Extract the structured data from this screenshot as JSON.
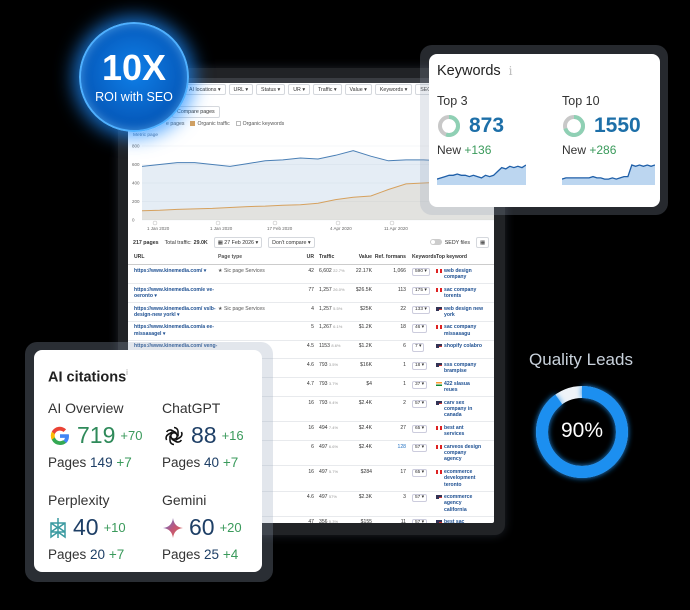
{
  "badge": {
    "value": "10X",
    "label": "ROI with SEO"
  },
  "filters": [
    "AI locations ▾",
    "URL ▾",
    "Status ▾",
    "UR ▾",
    "Traffic ▾",
    "Value ▾",
    "Keywords ▾",
    "SEO"
  ],
  "compare_button": "Compare pages",
  "legend": [
    {
      "label": "e pages",
      "color": "#ffffff"
    },
    {
      "label": "Organic traffic",
      "color": "#d6a15e"
    },
    {
      "label": "Organic keywords",
      "color": "#ffffff"
    }
  ],
  "chart": {
    "metric_label": "Metric page",
    "y_ticks": [
      "800",
      "600",
      "400",
      "200",
      "0"
    ],
    "y_range": [
      0,
      800
    ],
    "x_ticks": [
      "1 Jan 2020",
      "1 Jan 2020",
      "17 Feb 2020",
      "4 Apr 2020",
      "11 Apr 2020"
    ],
    "series": [
      {
        "color": "#4a7fb5",
        "values": [
          580,
          600,
          620,
          620,
          600,
          580,
          610,
          640,
          650,
          670,
          660,
          700,
          750,
          690,
          640,
          650,
          650,
          640,
          690,
          760,
          700
        ]
      },
      {
        "color": "#d6a15e",
        "values": [
          100,
          105,
          115,
          120,
          125,
          135,
          145,
          150,
          160,
          165,
          180,
          220,
          245,
          260,
          330,
          390,
          400,
          410,
          420,
          400,
          380
        ]
      }
    ]
  },
  "summary": {
    "pages": "217 pages",
    "traffic_label": "Total traffic:",
    "traffic_value": "29.0K",
    "date": "27 Feb 2026 ▾",
    "compare": "Don't compare ▾",
    "toggle_label": "SEDY files"
  },
  "table": {
    "headers": [
      "URL",
      "Page type",
      "UR",
      "Traffic",
      "Value",
      "Ref. formans",
      "Keywords",
      "Top keyword"
    ],
    "rows": [
      {
        "url": "https://www.kinemedia.com/ ▾",
        "type": "★ Sic page  Services",
        "ur": "42",
        "traffic": "6,602",
        "pct": "22.7%",
        "value": "22.17K",
        "ref": "1,066",
        "kw": "590 ▾",
        "flag": "CA",
        "top": "web design company"
      },
      {
        "url": "https://www.kinemedia.com/e ve-oeronto ▾",
        "type": "",
        "ur": "77",
        "traffic": "1,257",
        "pct": "26.0%",
        "value": "$26.5K",
        "ref": "113",
        "kw": "175 ▾",
        "flag": "CA",
        "top": "sac company torents"
      },
      {
        "url": "https://www.kinemedia.com/ vslb-design-new yorkl ▾",
        "type": "★ Sic page  Services",
        "ur": "4",
        "traffic": "1,257",
        "pct": "5.5%",
        "value": "$25K",
        "ref": "22",
        "kw": "133 ▾",
        "flag": "US",
        "top": "web design new york"
      },
      {
        "url": "https://www.kinemedia.com/a ee-missasagel ▾",
        "type": "",
        "ur": "5",
        "traffic": "1,267",
        "pct": "6.1%",
        "value": "$1.2K",
        "ref": "18",
        "kw": "46 ▾",
        "flag": "CA",
        "top": "sac company missasagu"
      },
      {
        "url": "https://www.kinemedia.com/ veng-shopify-cofiader ▾",
        "type": "",
        "ur": "4.5",
        "traffic": "1153",
        "pct": "8.6%",
        "value": "$1.2K",
        "ref": "6",
        "kw": "7 ▾",
        "flag": "US",
        "top": "shopify colabro"
      },
      {
        "url": "",
        "type": "",
        "ur": "4.6",
        "traffic": "793",
        "pct": "3.5%",
        "value": "$16K",
        "ref": "1",
        "kw": "18 ▾",
        "flag": "US",
        "top": "sss company brampise"
      },
      {
        "url": "",
        "type": "",
        "ur": "4.7",
        "traffic": "793",
        "pct": "3.7%",
        "value": "$4",
        "ref": "1",
        "kw": "37 ▾",
        "flag": "IN",
        "top": "422 slasua reues"
      },
      {
        "url": "",
        "type": "al business",
        "ur": "16",
        "traffic": "793",
        "pct": "9.4%",
        "value": "$2.4K",
        "ref": "2",
        "kw": "57 ▾",
        "flag": "US",
        "top": "carv sex company in canada"
      },
      {
        "url": "",
        "type": "ers",
        "ur": "16",
        "traffic": "494",
        "pct": "7.4%",
        "value": "$2.4K",
        "ref": "27",
        "kw": "65 ▾",
        "flag": "CA",
        "top": "best ant services"
      },
      {
        "url": "",
        "type": "",
        "ur": "6",
        "traffic": "497",
        "pct": "6.6%",
        "value": "$2.4K",
        "ref": "128",
        "kw": "57 ▾",
        "flag": "CA",
        "top": "carveos design company agency"
      },
      {
        "url": "",
        "type": "",
        "ur": "16",
        "traffic": "497",
        "pct": "5.7%",
        "value": "$284",
        "ref": "17",
        "kw": "65 ▾",
        "flag": "CA",
        "top": "ecommerce development teronto"
      },
      {
        "url": "",
        "type": "",
        "ur": "4.6",
        "traffic": "497",
        "pct": "57%",
        "value": "$2.3K",
        "ref": "3",
        "kw": "57 ▾",
        "flag": "US",
        "top": "ecommerce agency california"
      },
      {
        "url": "",
        "type": "",
        "ur": "47",
        "traffic": "356",
        "pct": "5.3%",
        "value": "$155",
        "ref": "11",
        "kw": "57 ▾",
        "flag": "US",
        "top": "best sac"
      }
    ]
  },
  "keywords_card": {
    "title": "Keywords",
    "cols": [
      {
        "label": "Top 3",
        "value": "873",
        "new_label": "New",
        "new_delta": "+136",
        "ring_fraction": 0.55,
        "spark": [
          3,
          4,
          5,
          6,
          6,
          7,
          6,
          6,
          5,
          6,
          5,
          4,
          6,
          5,
          6,
          9,
          12,
          11,
          13,
          12,
          13,
          12,
          14
        ]
      },
      {
        "label": "Top 10",
        "value": "1550",
        "new_label": "New",
        "new_delta": "+286",
        "ring_fraction": 0.7,
        "spark": [
          3,
          4,
          4,
          4,
          4,
          4,
          4,
          4,
          5,
          4,
          4,
          3,
          3,
          4,
          3,
          4,
          5,
          5,
          14,
          13,
          14,
          13,
          14,
          13,
          14
        ]
      }
    ]
  },
  "ai_card": {
    "title": "AI citations",
    "items": [
      {
        "name": "AI Overview",
        "icon": "google-icon",
        "value": "719",
        "delta": "+70",
        "pages_label": "Pages",
        "pages": "149",
        "pages_delta": "+7"
      },
      {
        "name": "ChatGPT",
        "icon": "openai-icon",
        "value": "88",
        "delta": "+16",
        "pages_label": "Pages",
        "pages": "40",
        "pages_delta": "+7"
      },
      {
        "name": "Perplexity",
        "icon": "perplexity-icon",
        "value": "40",
        "delta": "+10",
        "pages_label": "Pages",
        "pages": "20",
        "pages_delta": "+7"
      },
      {
        "name": "Gemini",
        "icon": "gemini-icon",
        "value": "60",
        "delta": "+20",
        "pages_label": "Pages",
        "pages": "25",
        "pages_delta": "+4"
      }
    ]
  },
  "quality_leads": {
    "title": "Quality Leads",
    "value": "90%",
    "fraction": 0.9
  }
}
